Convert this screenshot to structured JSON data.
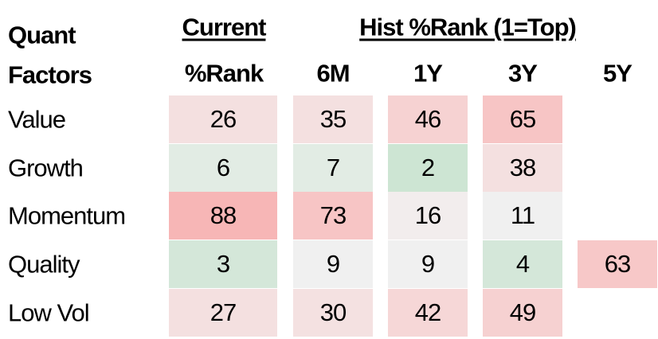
{
  "header": {
    "quant": "Quant",
    "factors": "Factors",
    "current": "Current",
    "current_sub": "%Rank",
    "hist": "Hist %Rank (1=Top)",
    "periods": [
      "6M",
      "1Y",
      "3Y",
      "5Y"
    ]
  },
  "rows": [
    {
      "label": "Value",
      "cells": [
        {
          "value": 26,
          "color": "#f4e0e0"
        },
        {
          "value": 35,
          "color": "#f4e0e0"
        },
        {
          "value": 46,
          "color": "#f6d2d2"
        },
        {
          "value": 65,
          "color": "#f7c5c5"
        },
        null
      ]
    },
    {
      "label": "Growth",
      "cells": [
        {
          "value": 6,
          "color": "#e2ece4"
        },
        {
          "value": 7,
          "color": "#e2ece4"
        },
        {
          "value": 2,
          "color": "#cde5d3"
        },
        {
          "value": 38,
          "color": "#f4e0e0"
        },
        null
      ]
    },
    {
      "label": "Momentum",
      "cells": [
        {
          "value": 88,
          "color": "#f7b6b6"
        },
        {
          "value": 73,
          "color": "#f7c5c5"
        },
        {
          "value": 16,
          "color": "#f2eded"
        },
        {
          "value": 11,
          "color": "#f0f0f0"
        },
        null
      ]
    },
    {
      "label": "Quality",
      "cells": [
        {
          "value": 3,
          "color": "#d4e7d9"
        },
        {
          "value": 9,
          "color": "#f0f0f0"
        },
        {
          "value": 9,
          "color": "#f0f0f0"
        },
        {
          "value": 4,
          "color": "#d4e7d9"
        },
        {
          "value": 63,
          "color": "#f7c8c8"
        }
      ]
    },
    {
      "label": "Low Vol",
      "cells": [
        {
          "value": 27,
          "color": "#f4e0e0"
        },
        {
          "value": 30,
          "color": "#f4e1e1"
        },
        {
          "value": 42,
          "color": "#f6d7d7"
        },
        {
          "value": 49,
          "color": "#f6d1d1"
        },
        null
      ]
    }
  ]
}
